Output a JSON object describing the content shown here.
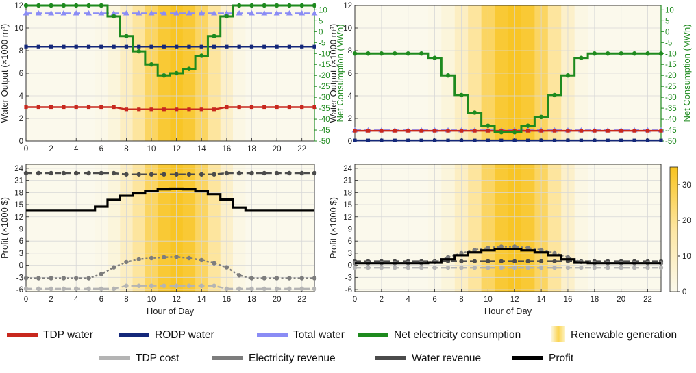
{
  "chart_data": [
    {
      "id": "top-left",
      "type": "line",
      "xlabel": "",
      "ylabel": "Water Output (×1000 m³)",
      "y2label": "Net Consumption (MWh)",
      "xlim": [
        0,
        23
      ],
      "ylim": [
        0,
        12
      ],
      "y2lim": [
        -50,
        12
      ],
      "xticks": [
        "0",
        "2",
        "4",
        "6",
        "8",
        "10",
        "12",
        "14",
        "16",
        "18",
        "20",
        "22"
      ],
      "yticks": [
        "0",
        "2",
        "4",
        "6",
        "8",
        "10",
        "12"
      ],
      "y2ticks": [
        "10",
        "5",
        "0",
        "-5",
        "-10",
        "-15",
        "-20",
        "-25",
        "-30",
        "-35",
        "-40",
        "-45",
        "-50"
      ],
      "series": [
        {
          "name": "Total water",
          "axis": "left",
          "style": "dashed",
          "marker": "triangle",
          "values": [
            11.3,
            11.3,
            11.3,
            11.3,
            11.3,
            11.3,
            11.3,
            11.3,
            11.3,
            11.3,
            11.3,
            11.3,
            11.3,
            11.3,
            11.3,
            11.3,
            11.3,
            11.3,
            11.3,
            11.3,
            11.3,
            11.3,
            11.3,
            11.3
          ]
        },
        {
          "name": "RODP water",
          "axis": "left",
          "style": "solid",
          "marker": "square",
          "values": [
            8.35,
            8.35,
            8.35,
            8.35,
            8.35,
            8.35,
            8.35,
            8.35,
            8.35,
            8.35,
            8.35,
            8.35,
            8.35,
            8.35,
            8.35,
            8.35,
            8.35,
            8.35,
            8.35,
            8.35,
            8.35,
            8.35,
            8.35,
            8.35
          ]
        },
        {
          "name": "TDP water",
          "axis": "left",
          "style": "solid",
          "marker": "square",
          "values": [
            3.0,
            3.0,
            3.0,
            3.0,
            3.0,
            3.0,
            3.0,
            3.0,
            2.8,
            2.8,
            2.8,
            2.8,
            2.8,
            2.8,
            2.8,
            2.8,
            3.0,
            3.0,
            3.0,
            3.0,
            3.0,
            3.0,
            3.0,
            3.0
          ]
        },
        {
          "name": "Net electricity consumption",
          "axis": "right",
          "style": "step",
          "marker": "circle",
          "values": [
            12,
            12,
            12,
            12,
            12,
            12,
            12,
            7,
            -2,
            -9,
            -15,
            -20,
            -19,
            -17,
            -11,
            -2,
            7,
            12,
            12,
            12,
            12,
            12,
            12,
            12
          ]
        }
      ]
    },
    {
      "id": "top-right",
      "type": "line",
      "xlabel": "",
      "ylabel": "Water Output (×1000 m³)",
      "y2label": "Net Consumption (MWh)",
      "xlim": [
        0,
        23
      ],
      "ylim": [
        0,
        12
      ],
      "y2lim": [
        -50,
        12
      ],
      "xticks": [
        "0",
        "2",
        "4",
        "6",
        "8",
        "10",
        "12",
        "14",
        "16",
        "18",
        "20",
        "22"
      ],
      "yticks": [
        "0",
        "2",
        "4",
        "6",
        "8",
        "10",
        "12"
      ],
      "y2ticks": [
        "10",
        "5",
        "0",
        "-5",
        "-10",
        "-15",
        "-20",
        "-25",
        "-30",
        "-35",
        "-40",
        "-45",
        "-50"
      ],
      "series": [
        {
          "name": "Total water",
          "axis": "left",
          "style": "dashed",
          "marker": "triangle",
          "values": [
            0.95,
            0.95,
            0.95,
            0.95,
            0.95,
            0.95,
            0.95,
            0.95,
            0.95,
            0.95,
            0.95,
            0.95,
            0.95,
            0.95,
            0.95,
            0.95,
            0.95,
            0.95,
            0.95,
            0.95,
            0.95,
            0.95,
            0.95,
            0.95
          ]
        },
        {
          "name": "TDP water",
          "axis": "left",
          "style": "solid",
          "marker": "square",
          "values": [
            0.9,
            0.9,
            0.9,
            0.9,
            0.9,
            0.9,
            0.9,
            0.9,
            0.9,
            0.9,
            0.9,
            0.9,
            0.9,
            0.9,
            0.9,
            0.9,
            0.9,
            0.9,
            0.9,
            0.9,
            0.9,
            0.9,
            0.9,
            0.9
          ]
        },
        {
          "name": "RODP water",
          "axis": "left",
          "style": "solid",
          "marker": "square",
          "values": [
            0.05,
            0.05,
            0.05,
            0.05,
            0.05,
            0.05,
            0.05,
            0.05,
            0.05,
            0.05,
            0.05,
            0.05,
            0.05,
            0.05,
            0.05,
            0.05,
            0.05,
            0.05,
            0.05,
            0.05,
            0.05,
            0.05,
            0.05,
            0.05
          ]
        },
        {
          "name": "Net electricity consumption",
          "axis": "right",
          "style": "step",
          "marker": "circle",
          "values": [
            -10,
            -10,
            -10,
            -10,
            -10,
            -10,
            -12,
            -20,
            -29,
            -37,
            -43,
            -46,
            -46,
            -43,
            -39,
            -29,
            -20,
            -12,
            -10,
            -10,
            -10,
            -10,
            -10,
            -10
          ]
        }
      ]
    },
    {
      "id": "bottom-left",
      "type": "line",
      "xlabel": "Hour of Day",
      "ylabel": "Profit (×1000 $)",
      "xlim": [
        0,
        23
      ],
      "ylim": [
        -6.5,
        25
      ],
      "xticks": [
        "0",
        "2",
        "4",
        "6",
        "8",
        "10",
        "12",
        "14",
        "16",
        "18",
        "20",
        "22"
      ],
      "yticks": [
        "-6",
        "-3",
        "0",
        "3",
        "6",
        "9",
        "12",
        "15",
        "18",
        "21",
        "24"
      ],
      "series": [
        {
          "name": "Water revenue",
          "style": "dashed",
          "marker": "circle",
          "values": [
            22.8,
            22.8,
            22.8,
            22.8,
            22.8,
            22.8,
            22.8,
            22.8,
            22.5,
            22.5,
            22.5,
            22.5,
            22.5,
            22.5,
            22.5,
            22.5,
            22.8,
            22.8,
            22.8,
            22.8,
            22.8,
            22.8,
            22.8,
            22.8
          ]
        },
        {
          "name": "Profit",
          "style": "step",
          "marker": "none",
          "values": [
            13.5,
            13.5,
            13.5,
            13.5,
            13.5,
            13.5,
            14.5,
            16.2,
            17.2,
            17.8,
            18.4,
            18.8,
            19.0,
            18.8,
            18.3,
            17.6,
            16.3,
            14.3,
            13.5,
            13.5,
            13.5,
            13.5,
            13.5,
            13.5
          ]
        },
        {
          "name": "Electricity revenue",
          "style": "dotted",
          "marker": "circle",
          "values": [
            -3.2,
            -3.2,
            -3.2,
            -3.2,
            -3.2,
            -3.2,
            -2.2,
            -0.5,
            0.8,
            1.5,
            1.8,
            2.0,
            2.1,
            1.8,
            1.3,
            0.5,
            -0.5,
            -2.5,
            -3.2,
            -3.2,
            -3.2,
            -3.2,
            -3.2,
            -3.2
          ]
        },
        {
          "name": "TDP cost",
          "style": "dashed",
          "marker": "circle",
          "values": [
            -5.8,
            -5.8,
            -5.8,
            -5.8,
            -5.8,
            -5.8,
            -5.8,
            -5.8,
            -5.1,
            -5.1,
            -5.1,
            -5.1,
            -5.1,
            -5.1,
            -5.1,
            -5.1,
            -5.8,
            -5.8,
            -5.8,
            -5.8,
            -5.8,
            -5.8,
            -5.8,
            -5.8
          ]
        }
      ]
    },
    {
      "id": "bottom-right",
      "type": "line",
      "xlabel": "Hour of Day",
      "ylabel": "Profit (×1000 $)",
      "xlim": [
        0,
        23
      ],
      "ylim": [
        -6.5,
        25
      ],
      "xticks": [
        "0",
        "2",
        "4",
        "6",
        "8",
        "10",
        "12",
        "14",
        "16",
        "18",
        "20",
        "22"
      ],
      "yticks": [
        "-6",
        "-3",
        "0",
        "3",
        "6",
        "9",
        "12",
        "15",
        "18",
        "21",
        "24"
      ],
      "series": [
        {
          "name": "Water revenue",
          "style": "dashed",
          "marker": "circle",
          "values": [
            1.0,
            1.0,
            1.0,
            1.0,
            1.0,
            1.0,
            1.0,
            1.0,
            1.0,
            1.0,
            1.0,
            1.0,
            1.0,
            1.0,
            1.0,
            1.0,
            1.0,
            1.0,
            1.0,
            1.0,
            1.0,
            1.0,
            1.0,
            1.0
          ]
        },
        {
          "name": "Electricity revenue",
          "style": "dotted",
          "marker": "circle",
          "values": [
            0.5,
            0.5,
            0.5,
            0.5,
            0.5,
            0.5,
            0.8,
            2.0,
            3.0,
            3.8,
            4.3,
            4.6,
            4.6,
            4.3,
            3.8,
            3.0,
            2.0,
            0.8,
            0.5,
            0.5,
            0.5,
            0.5,
            0.5,
            0.5
          ]
        },
        {
          "name": "Profit",
          "style": "step",
          "marker": "none",
          "values": [
            0.5,
            0.5,
            0.5,
            0.5,
            0.5,
            0.5,
            0.6,
            1.5,
            2.5,
            3.2,
            3.7,
            4.0,
            4.0,
            3.7,
            3.2,
            2.5,
            1.5,
            0.6,
            0.5,
            0.5,
            0.5,
            0.5,
            0.5,
            0.5
          ]
        },
        {
          "name": "TDP cost",
          "style": "dashed",
          "marker": "circle",
          "values": [
            -0.6,
            -0.6,
            -0.6,
            -0.6,
            -0.6,
            -0.6,
            -0.6,
            -0.6,
            -0.6,
            -0.6,
            -0.6,
            -0.6,
            -0.6,
            -0.6,
            -0.6,
            -0.6,
            -0.6,
            -0.6,
            -0.6,
            -0.6,
            -0.6,
            -0.6,
            -0.6,
            -0.6
          ]
        }
      ]
    }
  ],
  "renewable_generation": {
    "values": [
      0,
      0,
      0,
      0,
      0,
      0,
      1,
      4,
      10,
      18,
      26,
      32,
      34,
      32,
      26,
      18,
      8,
      2,
      0,
      0,
      0,
      0,
      0,
      0
    ],
    "colorbar_ticks": [
      "0",
      "10",
      "20",
      "30"
    ],
    "colorbar_max": 35
  },
  "legend": {
    "row1": [
      {
        "label": "TDP water",
        "color": "#c8281e",
        "kind": "line"
      },
      {
        "label": "RODP water",
        "color": "#14287a",
        "kind": "line"
      },
      {
        "label": "Total water",
        "color": "#8a8cf5",
        "kind": "line"
      },
      {
        "label": "Net electricity consumption",
        "color": "#1e8a1e",
        "kind": "line"
      },
      {
        "label": "Renewable generation",
        "color": "#f5c400",
        "kind": "gradient"
      }
    ],
    "row2": [
      {
        "label": "TDP cost",
        "color": "#b4b4b4",
        "kind": "line"
      },
      {
        "label": "Electricity revenue",
        "color": "#7d7d7d",
        "kind": "line"
      },
      {
        "label": "Water revenue",
        "color": "#4b4b4b",
        "kind": "line"
      },
      {
        "label": "Profit",
        "color": "#000000",
        "kind": "line"
      }
    ]
  },
  "colors": {
    "tdp_water": "#c8281e",
    "rodp_water": "#14287a",
    "total_water": "#8a8cf5",
    "net_consumption": "#1e8a1e",
    "renewable": "#f5c400",
    "tdp_cost": "#b4b4b4",
    "electricity_revenue": "#7d7d7d",
    "water_revenue": "#4b4b4b",
    "profit": "#000000"
  }
}
